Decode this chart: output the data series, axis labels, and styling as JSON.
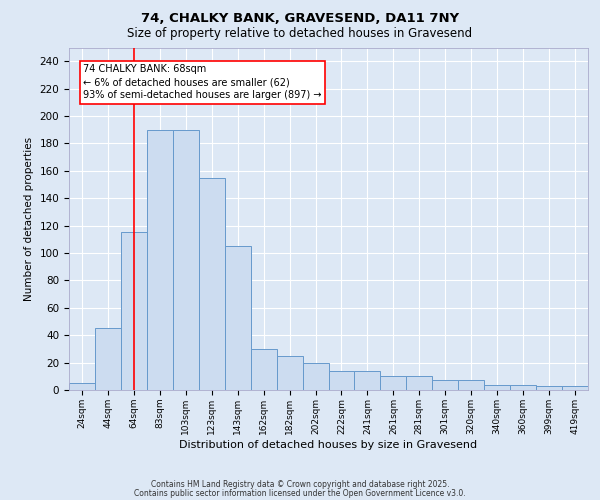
{
  "title_line1": "74, CHALKY BANK, GRAVESEND, DA11 7NY",
  "title_line2": "Size of property relative to detached houses in Gravesend",
  "xlabel": "Distribution of detached houses by size in Gravesend",
  "ylabel": "Number of detached properties",
  "categories": [
    "24sqm",
    "44sqm",
    "64sqm",
    "83sqm",
    "103sqm",
    "123sqm",
    "143sqm",
    "162sqm",
    "182sqm",
    "202sqm",
    "222sqm",
    "241sqm",
    "261sqm",
    "281sqm",
    "301sqm",
    "320sqm",
    "340sqm",
    "360sqm",
    "399sqm",
    "419sqm"
  ],
  "values": [
    5,
    45,
    115,
    190,
    190,
    155,
    105,
    30,
    25,
    20,
    14,
    14,
    10,
    10,
    7,
    7,
    4,
    4,
    3,
    3
  ],
  "bar_color": "#ccdcf0",
  "bar_edge_color": "#6699cc",
  "red_line_index": 2,
  "annotation_text": "74 CHALKY BANK: 68sqm\n← 6% of detached houses are smaller (62)\n93% of semi-detached houses are larger (897) →",
  "annotation_box_facecolor": "white",
  "annotation_box_edgecolor": "red",
  "ylim": [
    0,
    250
  ],
  "yticks": [
    0,
    20,
    40,
    60,
    80,
    100,
    120,
    140,
    160,
    180,
    200,
    220,
    240
  ],
  "background_color": "#dde8f5",
  "grid_color": "white",
  "footer_line1": "Contains HM Land Registry data © Crown copyright and database right 2025.",
  "footer_line2": "Contains public sector information licensed under the Open Government Licence v3.0."
}
